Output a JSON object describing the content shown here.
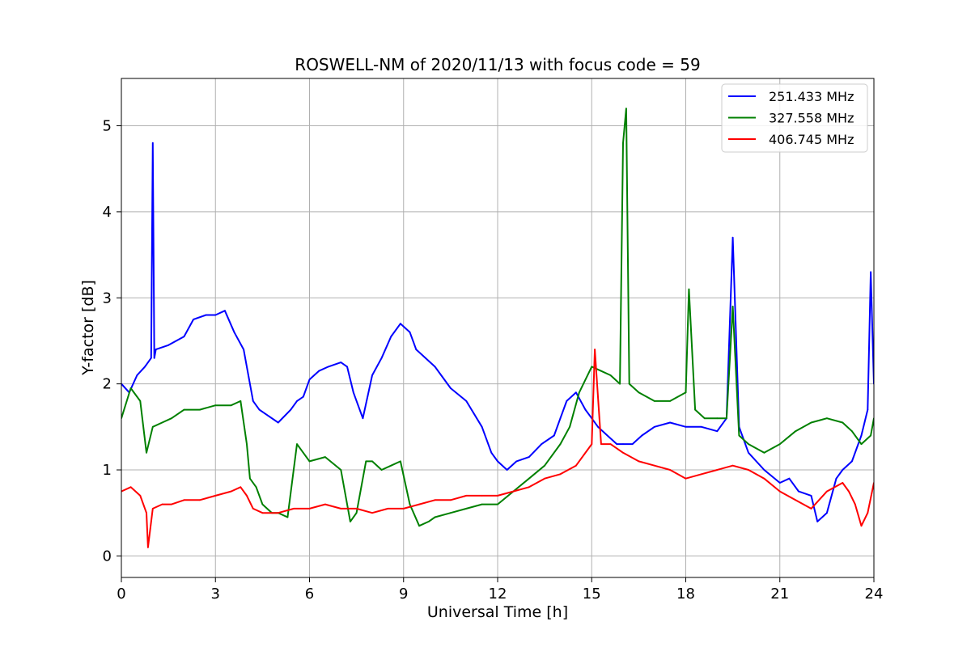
{
  "chart_data": {
    "type": "line",
    "title": "ROSWELL-NM of 2020/11/13 with focus code = 59",
    "xlabel": "Universal Time [h]",
    "ylabel": "Y-factor [dB]",
    "xlim": [
      0,
      24
    ],
    "ylim": [
      -0.25,
      5.55
    ],
    "xticks": [
      0,
      3,
      6,
      9,
      12,
      15,
      18,
      21,
      24
    ],
    "yticks": [
      0,
      1,
      2,
      3,
      4,
      5
    ],
    "grid": true,
    "legend_position": "top-right",
    "series": [
      {
        "name": "251.433 MHz",
        "color": "#0000ff",
        "x": [
          0,
          0.25,
          0.5,
          0.75,
          0.95,
          1.0,
          1.05,
          1.1,
          1.5,
          2.0,
          2.3,
          2.7,
          3.0,
          3.3,
          3.6,
          3.9,
          4.0,
          4.2,
          4.4,
          4.6,
          5.0,
          5.4,
          5.6,
          5.8,
          6.0,
          6.3,
          6.6,
          7.0,
          7.2,
          7.4,
          7.7,
          8.0,
          8.3,
          8.6,
          8.9,
          9.2,
          9.4,
          9.7,
          10.0,
          10.5,
          11.0,
          11.5,
          11.8,
          12.0,
          12.3,
          12.6,
          13.0,
          13.4,
          13.8,
          14.0,
          14.2,
          14.5,
          14.8,
          15.0,
          15.2,
          15.5,
          15.8,
          16.0,
          16.3,
          16.6,
          17.0,
          17.5,
          18.0,
          18.5,
          19.0,
          19.3,
          19.5,
          19.7,
          20.0,
          20.5,
          21.0,
          21.3,
          21.6,
          22.0,
          22.2,
          22.5,
          22.8,
          23.0,
          23.3,
          23.6,
          23.8,
          23.9,
          24.0
        ],
        "values": [
          2.0,
          1.9,
          2.1,
          2.2,
          2.3,
          4.8,
          2.3,
          2.4,
          2.45,
          2.55,
          2.75,
          2.8,
          2.8,
          2.85,
          2.6,
          2.4,
          2.2,
          1.8,
          1.7,
          1.65,
          1.55,
          1.7,
          1.8,
          1.85,
          2.05,
          2.15,
          2.2,
          2.25,
          2.2,
          1.9,
          1.6,
          2.1,
          2.3,
          2.55,
          2.7,
          2.6,
          2.4,
          2.3,
          2.2,
          1.95,
          1.8,
          1.5,
          1.2,
          1.1,
          1.0,
          1.1,
          1.15,
          1.3,
          1.4,
          1.6,
          1.8,
          1.9,
          1.7,
          1.6,
          1.5,
          1.4,
          1.3,
          1.3,
          1.3,
          1.4,
          1.5,
          1.55,
          1.5,
          1.5,
          1.45,
          1.6,
          3.7,
          1.5,
          1.2,
          1.0,
          0.85,
          0.9,
          0.75,
          0.7,
          0.4,
          0.5,
          0.9,
          1.0,
          1.1,
          1.4,
          1.7,
          3.3,
          2.0
        ]
      },
      {
        "name": "327.558 MHz",
        "color": "#008000",
        "x": [
          0,
          0.3,
          0.6,
          0.8,
          1.0,
          1.3,
          1.6,
          2.0,
          2.5,
          3.0,
          3.5,
          3.8,
          4.0,
          4.1,
          4.3,
          4.5,
          4.8,
          5.0,
          5.3,
          5.6,
          5.8,
          6.0,
          6.5,
          7.0,
          7.3,
          7.5,
          7.8,
          8.0,
          8.3,
          8.6,
          8.9,
          9.2,
          9.5,
          9.8,
          10.0,
          10.5,
          11.0,
          11.5,
          12.0,
          12.5,
          13.0,
          13.5,
          14.0,
          14.3,
          14.6,
          15.0,
          15.3,
          15.6,
          15.9,
          16.0,
          16.1,
          16.2,
          16.5,
          17.0,
          17.5,
          18.0,
          18.1,
          18.3,
          18.6,
          19.0,
          19.3,
          19.5,
          19.7,
          20.0,
          20.5,
          21.0,
          21.5,
          22.0,
          22.5,
          23.0,
          23.3,
          23.6,
          23.9,
          24.0
        ],
        "values": [
          1.6,
          1.95,
          1.8,
          1.2,
          1.5,
          1.55,
          1.6,
          1.7,
          1.7,
          1.75,
          1.75,
          1.8,
          1.3,
          0.9,
          0.8,
          0.6,
          0.5,
          0.5,
          0.45,
          1.3,
          1.2,
          1.1,
          1.15,
          1.0,
          0.4,
          0.5,
          1.1,
          1.1,
          1.0,
          1.05,
          1.1,
          0.6,
          0.35,
          0.4,
          0.45,
          0.5,
          0.55,
          0.6,
          0.6,
          0.75,
          0.9,
          1.05,
          1.3,
          1.5,
          1.9,
          2.2,
          2.15,
          2.1,
          2.0,
          4.8,
          5.2,
          2.0,
          1.9,
          1.8,
          1.8,
          1.9,
          3.1,
          1.7,
          1.6,
          1.6,
          1.6,
          2.9,
          1.4,
          1.3,
          1.2,
          1.3,
          1.45,
          1.55,
          1.6,
          1.55,
          1.45,
          1.3,
          1.4,
          1.6
        ]
      },
      {
        "name": "406.745 MHz",
        "color": "#ff0000",
        "x": [
          0,
          0.3,
          0.6,
          0.8,
          0.85,
          1.0,
          1.3,
          1.6,
          2.0,
          2.5,
          3.0,
          3.5,
          3.8,
          4.0,
          4.2,
          4.5,
          5.0,
          5.5,
          6.0,
          6.5,
          7.0,
          7.5,
          8.0,
          8.5,
          9.0,
          9.5,
          10.0,
          10.5,
          11.0,
          11.5,
          12.0,
          12.5,
          13.0,
          13.5,
          14.0,
          14.5,
          15.0,
          15.1,
          15.3,
          15.6,
          16.0,
          16.5,
          17.0,
          17.5,
          18.0,
          18.5,
          19.0,
          19.5,
          20.0,
          20.5,
          21.0,
          21.5,
          22.0,
          22.5,
          23.0,
          23.2,
          23.4,
          23.6,
          23.8,
          24.0
        ],
        "values": [
          0.75,
          0.8,
          0.7,
          0.5,
          0.1,
          0.55,
          0.6,
          0.6,
          0.65,
          0.65,
          0.7,
          0.75,
          0.8,
          0.7,
          0.55,
          0.5,
          0.5,
          0.55,
          0.55,
          0.6,
          0.55,
          0.55,
          0.5,
          0.55,
          0.55,
          0.6,
          0.65,
          0.65,
          0.7,
          0.7,
          0.7,
          0.75,
          0.8,
          0.9,
          0.95,
          1.05,
          1.3,
          2.4,
          1.3,
          1.3,
          1.2,
          1.1,
          1.05,
          1.0,
          0.9,
          0.95,
          1.0,
          1.05,
          1.0,
          0.9,
          0.75,
          0.65,
          0.55,
          0.75,
          0.85,
          0.75,
          0.6,
          0.35,
          0.5,
          0.85
        ]
      }
    ]
  }
}
